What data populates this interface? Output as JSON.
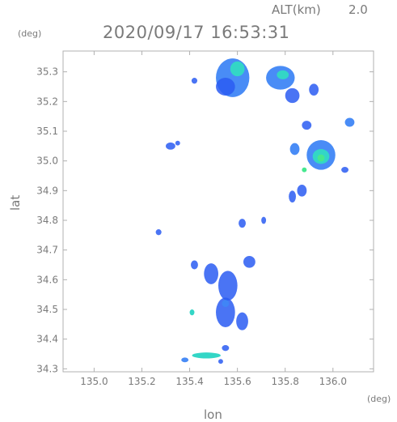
{
  "header": {
    "alt_label": "ALT(km)",
    "alt_value": "2.0",
    "datetime": "2020/09/17 16:53:31"
  },
  "axes": {
    "y_unit": "(deg)",
    "x_unit": "(deg)",
    "xlabel": "lon",
    "ylabel": "lat"
  },
  "colors": {
    "frame": "#b0b0b0",
    "text": "#7a7a7a",
    "echo_weak": "#2a5cf2",
    "echo_mid": "#3f86f5",
    "echo_strong": "#33d6c6",
    "echo_peak": "#46e88f"
  },
  "chart_data": {
    "type": "heatmap",
    "title": "2020/09/17 16:53:31",
    "xlabel": "lon",
    "ylabel": "lat",
    "xlim": [
      134.87,
      136.17
    ],
    "ylim": [
      34.29,
      35.37
    ],
    "x_ticks": [
      "135.0",
      "135.2",
      "135.4",
      "135.6",
      "135.8",
      "136.0"
    ],
    "y_ticks": [
      "34.3",
      "34.4",
      "34.5",
      "34.6",
      "34.7",
      "34.8",
      "34.9",
      "35.0",
      "35.1",
      "35.2",
      "35.3"
    ],
    "grid": false,
    "echo_cells": [
      {
        "lon": 135.58,
        "lat": 35.28,
        "rlon": 0.07,
        "rlat": 0.065,
        "level": "mid"
      },
      {
        "lon": 135.55,
        "lat": 35.25,
        "rlon": 0.04,
        "rlat": 0.03,
        "level": "weak"
      },
      {
        "lon": 135.6,
        "lat": 35.31,
        "rlon": 0.03,
        "rlat": 0.025,
        "level": "strong"
      },
      {
        "lon": 135.78,
        "lat": 35.28,
        "rlon": 0.06,
        "rlat": 0.04,
        "level": "mid"
      },
      {
        "lon": 135.79,
        "lat": 35.29,
        "rlon": 0.025,
        "rlat": 0.015,
        "level": "strong"
      },
      {
        "lon": 135.83,
        "lat": 35.22,
        "rlon": 0.03,
        "rlat": 0.025,
        "level": "weak"
      },
      {
        "lon": 135.92,
        "lat": 35.24,
        "rlon": 0.02,
        "rlat": 0.02,
        "level": "weak"
      },
      {
        "lon": 135.95,
        "lat": 35.02,
        "rlon": 0.06,
        "rlat": 0.05,
        "level": "mid"
      },
      {
        "lon": 135.95,
        "lat": 35.015,
        "rlon": 0.035,
        "rlat": 0.025,
        "level": "strong"
      },
      {
        "lon": 135.95,
        "lat": 35.01,
        "rlon": 0.015,
        "rlat": 0.012,
        "level": "peak"
      },
      {
        "lon": 135.89,
        "lat": 35.12,
        "rlon": 0.02,
        "rlat": 0.015,
        "level": "weak"
      },
      {
        "lon": 135.84,
        "lat": 35.04,
        "rlon": 0.02,
        "rlat": 0.02,
        "level": "mid"
      },
      {
        "lon": 136.07,
        "lat": 35.13,
        "rlon": 0.02,
        "rlat": 0.015,
        "level": "mid"
      },
      {
        "lon": 136.05,
        "lat": 34.97,
        "rlon": 0.015,
        "rlat": 0.01,
        "level": "weak"
      },
      {
        "lon": 135.88,
        "lat": 34.97,
        "rlon": 0.01,
        "rlat": 0.008,
        "level": "peak"
      },
      {
        "lon": 135.87,
        "lat": 34.9,
        "rlon": 0.02,
        "rlat": 0.02,
        "level": "weak"
      },
      {
        "lon": 135.83,
        "lat": 34.88,
        "rlon": 0.015,
        "rlat": 0.02,
        "level": "weak"
      },
      {
        "lon": 135.32,
        "lat": 35.05,
        "rlon": 0.02,
        "rlat": 0.012,
        "level": "weak"
      },
      {
        "lon": 135.35,
        "lat": 35.06,
        "rlon": 0.01,
        "rlat": 0.008,
        "level": "weak"
      },
      {
        "lon": 135.42,
        "lat": 35.27,
        "rlon": 0.012,
        "rlat": 0.01,
        "level": "weak"
      },
      {
        "lon": 135.62,
        "lat": 34.79,
        "rlon": 0.015,
        "rlat": 0.015,
        "level": "weak"
      },
      {
        "lon": 135.71,
        "lat": 34.8,
        "rlon": 0.01,
        "rlat": 0.012,
        "level": "weak"
      },
      {
        "lon": 135.27,
        "lat": 34.76,
        "rlon": 0.012,
        "rlat": 0.01,
        "level": "weak"
      },
      {
        "lon": 135.49,
        "lat": 34.62,
        "rlon": 0.03,
        "rlat": 0.035,
        "level": "weak"
      },
      {
        "lon": 135.56,
        "lat": 34.58,
        "rlon": 0.04,
        "rlat": 0.05,
        "level": "weak"
      },
      {
        "lon": 135.65,
        "lat": 34.66,
        "rlon": 0.025,
        "rlat": 0.02,
        "level": "weak"
      },
      {
        "lon": 135.42,
        "lat": 34.65,
        "rlon": 0.015,
        "rlat": 0.015,
        "level": "weak"
      },
      {
        "lon": 135.55,
        "lat": 34.49,
        "rlon": 0.04,
        "rlat": 0.05,
        "level": "weak"
      },
      {
        "lon": 135.62,
        "lat": 34.46,
        "rlon": 0.025,
        "rlat": 0.03,
        "level": "weak"
      },
      {
        "lon": 135.55,
        "lat": 34.52,
        "rlon": 0.015,
        "rlat": 0.012,
        "level": "mid"
      },
      {
        "lon": 135.41,
        "lat": 34.49,
        "rlon": 0.01,
        "rlat": 0.01,
        "level": "strong"
      },
      {
        "lon": 135.55,
        "lat": 34.37,
        "rlon": 0.015,
        "rlat": 0.01,
        "level": "weak"
      },
      {
        "lon": 135.47,
        "lat": 34.345,
        "rlon": 0.06,
        "rlat": 0.01,
        "level": "strong"
      },
      {
        "lon": 135.38,
        "lat": 34.33,
        "rlon": 0.015,
        "rlat": 0.008,
        "level": "mid"
      },
      {
        "lon": 135.53,
        "lat": 34.325,
        "rlon": 0.01,
        "rlat": 0.008,
        "level": "weak"
      }
    ]
  }
}
